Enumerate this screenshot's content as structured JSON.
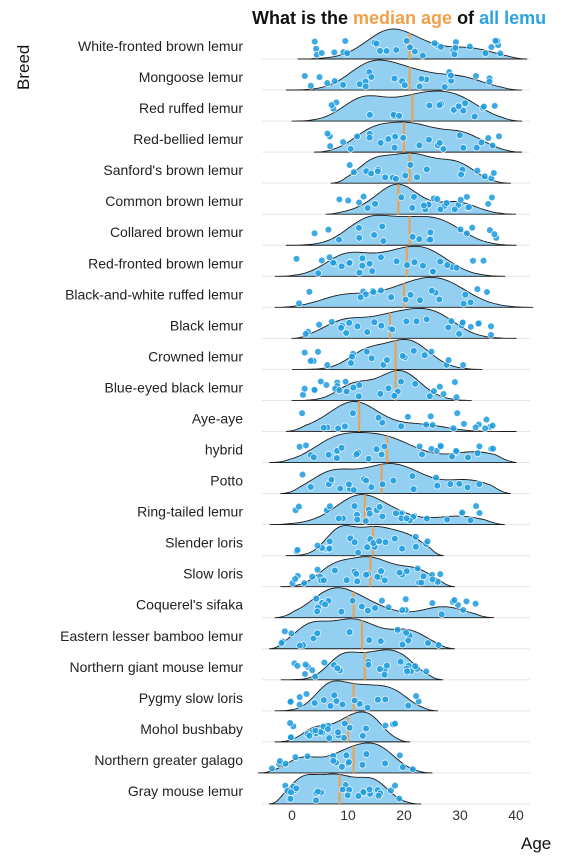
{
  "title": {
    "part1": "What is the ",
    "part2": "median age",
    "part3": " of ",
    "part4": "all lemu"
  },
  "chart_data": {
    "type": "ridgeline",
    "xlabel": "Age",
    "ylabel": "Breed",
    "xlim": [
      -4,
      44
    ],
    "xticks": [
      0,
      10,
      20,
      30,
      40
    ],
    "colors": {
      "density_fill": "#8dcdf0",
      "points": "#1d9ce0",
      "median": "#f0a04a",
      "outline": "#111111"
    },
    "series": [
      {
        "name": "White-fronted brown lemur",
        "median": 21,
        "range": [
          1,
          42
        ]
      },
      {
        "name": "Mongoose lemur",
        "median": 21,
        "range": [
          -1,
          41
        ]
      },
      {
        "name": "Red ruffed lemur",
        "median": 21.5,
        "range": [
          0,
          41
        ]
      },
      {
        "name": "Red-bellied lemur",
        "median": 20,
        "range": [
          4,
          41
        ]
      },
      {
        "name": "Sanford's brown lemur",
        "median": 21,
        "range": [
          7,
          39
        ]
      },
      {
        "name": "Common brown lemur",
        "median": 19,
        "range": [
          6,
          40
        ]
      },
      {
        "name": "Collared brown lemur",
        "median": 21,
        "range": [
          -1,
          40
        ]
      },
      {
        "name": "Red-fronted brown lemur",
        "median": 20.5,
        "range": [
          -3,
          38
        ]
      },
      {
        "name": "Black-and-white ruffed lemur",
        "median": 20,
        "range": [
          -3,
          43
        ]
      },
      {
        "name": "Black lemur",
        "median": 17.5,
        "range": [
          0,
          40
        ]
      },
      {
        "name": "Crowned lemur",
        "median": 18.5,
        "range": [
          0,
          34
        ]
      },
      {
        "name": "Blue-eyed black lemur",
        "median": 18.5,
        "range": [
          0,
          32
        ]
      },
      {
        "name": "Aye-aye",
        "median": 12,
        "range": [
          -1,
          40
        ]
      },
      {
        "name": "hybrid",
        "median": 17,
        "range": [
          -4,
          40
        ]
      },
      {
        "name": "Potto",
        "median": 16,
        "range": [
          -2,
          39
        ]
      },
      {
        "name": "Ring-tailed lemur",
        "median": 13,
        "range": [
          -4,
          38
        ]
      },
      {
        "name": "Slender loris",
        "median": 14.5,
        "range": [
          -1,
          27
        ]
      },
      {
        "name": "Slow loris",
        "median": 14,
        "range": [
          -2,
          29
        ]
      },
      {
        "name": "Coquerel's sifaka",
        "median": 11,
        "range": [
          -3,
          36
        ]
      },
      {
        "name": "Eastern lesser bamboo lemur",
        "median": 12.5,
        "range": [
          -4,
          29
        ]
      },
      {
        "name": "Northern giant mouse lemur",
        "median": 13,
        "range": [
          -2,
          27
        ]
      },
      {
        "name": "Pygmy slow loris",
        "median": 11,
        "range": [
          -3,
          26
        ]
      },
      {
        "name": "Mohol bushbaby",
        "median": 10,
        "range": [
          -3,
          21
        ]
      },
      {
        "name": "Northern greater galago",
        "median": 11,
        "range": [
          -6,
          25
        ]
      },
      {
        "name": "Gray mouse lemur",
        "median": 8.5,
        "range": [
          -4,
          23
        ]
      }
    ]
  }
}
